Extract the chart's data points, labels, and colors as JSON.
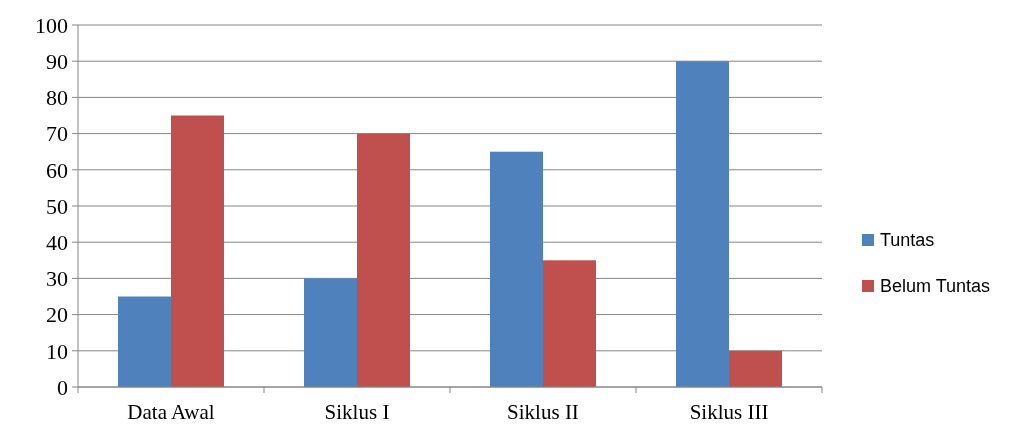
{
  "chart_data": {
    "type": "bar",
    "categories": [
      "Data Awal",
      "Siklus I",
      "Siklus II",
      "Siklus III"
    ],
    "series": [
      {
        "name": "Tuntas",
        "color": "#4f81bd",
        "values": [
          25,
          30,
          65,
          90
        ]
      },
      {
        "name": "Belum Tuntas",
        "color": "#c0504d",
        "values": [
          75,
          70,
          35,
          10
        ]
      }
    ],
    "ylim": [
      0,
      100
    ],
    "yticks": [
      0,
      10,
      20,
      30,
      40,
      50,
      60,
      70,
      80,
      90,
      100
    ],
    "grid": "y",
    "legend": "right"
  }
}
